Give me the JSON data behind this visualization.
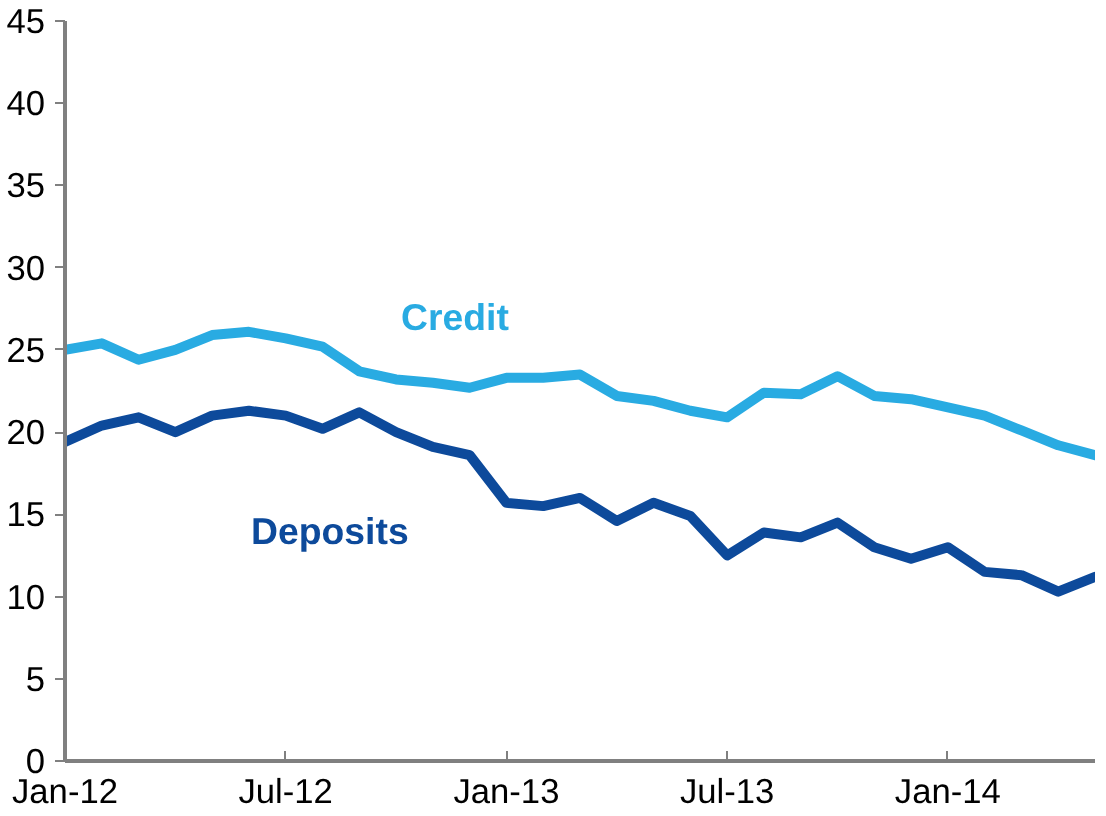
{
  "chart_data": {
    "type": "line",
    "x": [
      "2012-01",
      "2012-02",
      "2012-03",
      "2012-04",
      "2012-05",
      "2012-06",
      "2012-07",
      "2012-08",
      "2012-09",
      "2012-10",
      "2012-11",
      "2012-12",
      "2013-01",
      "2013-02",
      "2013-03",
      "2013-04",
      "2013-05",
      "2013-06",
      "2013-07",
      "2013-08",
      "2013-09",
      "2013-10",
      "2013-11",
      "2013-12",
      "2014-01",
      "2014-02",
      "2014-03",
      "2014-04",
      "2014-05"
    ],
    "series": [
      {
        "name": "Credit",
        "color": "#29abe2",
        "values": [
          25.0,
          25.4,
          24.4,
          25.0,
          25.9,
          26.1,
          25.7,
          25.2,
          23.7,
          23.2,
          23.0,
          22.7,
          23.3,
          23.3,
          23.5,
          22.2,
          21.9,
          21.3,
          20.9,
          22.4,
          22.3,
          23.4,
          22.2,
          22.0,
          21.5,
          21.0,
          20.1,
          19.2,
          18.6
        ]
      },
      {
        "name": "Deposits",
        "color": "#0d4a9b",
        "values": [
          19.4,
          20.4,
          20.9,
          20.0,
          21.0,
          21.3,
          21.0,
          20.2,
          21.2,
          20.0,
          19.1,
          18.6,
          15.7,
          15.5,
          16.0,
          14.6,
          15.7,
          14.9,
          12.5,
          13.9,
          13.6,
          14.5,
          13.0,
          12.3,
          13.0,
          11.5,
          11.3,
          10.3,
          11.2
        ]
      }
    ],
    "xlim": [
      "2012-01",
      "2014-05"
    ],
    "xticks": [
      {
        "value": "2012-01",
        "label": "Jan-12"
      },
      {
        "value": "2012-07",
        "label": "Jul-12"
      },
      {
        "value": "2013-01",
        "label": "Jan-13"
      },
      {
        "value": "2013-07",
        "label": "Jul-13"
      },
      {
        "value": "2014-01",
        "label": "Jan-14"
      }
    ],
    "ylim": [
      0,
      45
    ],
    "yticks": [
      0,
      5,
      10,
      15,
      20,
      25,
      30,
      35,
      40,
      45
    ],
    "grid": false,
    "legend": false,
    "marker": "none",
    "line_style": "solid"
  }
}
